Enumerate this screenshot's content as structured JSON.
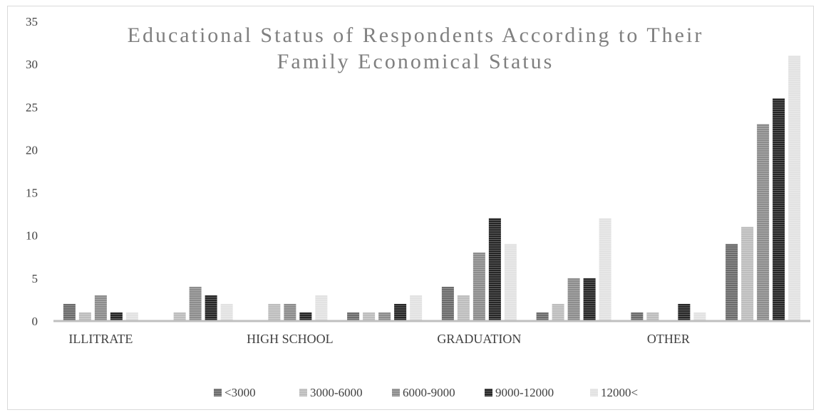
{
  "chart_data": {
    "type": "bar",
    "title_lines": [
      "Educational Status of Respondents According to Their",
      "Family Economical Status"
    ],
    "xlabel": "",
    "ylabel": "",
    "ylim": [
      0,
      35
    ],
    "y_ticks": [
      0,
      5,
      10,
      15,
      20,
      25,
      30,
      35
    ],
    "categories": [
      "ILLITRATE",
      "",
      "HIGH SCHOOL",
      "",
      "GRADUATION",
      "",
      "OTHER",
      ""
    ],
    "series": [
      {
        "name": "<3000",
        "color": "#6b6b6b",
        "values": [
          2,
          0,
          0,
          1,
          4,
          1,
          1,
          9
        ]
      },
      {
        "name": "3000-6000",
        "color": "#bdbdbd",
        "values": [
          1,
          1,
          2,
          1,
          3,
          2,
          1,
          11
        ]
      },
      {
        "name": "6000-9000",
        "color": "#8c8c8c",
        "values": [
          3,
          4,
          2,
          1,
          8,
          5,
          0,
          23
        ]
      },
      {
        "name": "9000-12000",
        "color": "#262626",
        "values": [
          1,
          3,
          1,
          2,
          12,
          5,
          2,
          26
        ]
      },
      {
        "name": "12000<",
        "color": "#e2e2e2",
        "values": [
          1,
          2,
          3,
          3,
          9,
          12,
          1,
          31
        ]
      }
    ],
    "legend_position": "bottom",
    "gridlines": false
  }
}
